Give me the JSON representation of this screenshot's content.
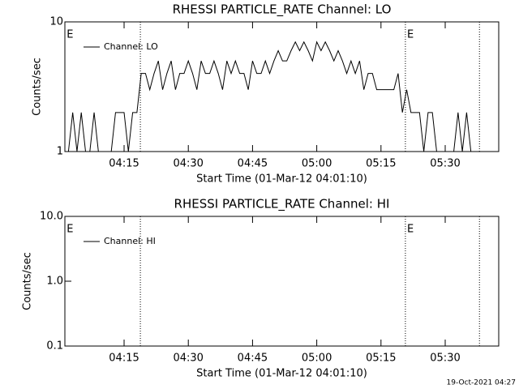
{
  "chart_data": [
    {
      "type": "line",
      "title": "RHESSI PARTICLE_RATE Channel: LO",
      "xlabel": "Start Time (01-Mar-12 04:01:10)",
      "ylabel": "Counts/sec",
      "x": [
        2,
        3,
        4,
        5,
        6,
        7,
        8,
        9,
        10,
        11,
        12,
        13,
        14,
        15,
        16,
        17,
        18,
        19,
        20,
        21,
        22,
        23,
        24,
        25,
        26,
        27,
        28,
        29,
        30,
        31,
        32,
        33,
        34,
        35,
        36,
        37,
        38,
        39,
        40,
        41,
        42,
        43,
        44,
        45,
        46,
        47,
        48,
        49,
        50,
        51,
        52,
        53,
        54,
        55,
        56,
        57,
        58,
        59,
        60,
        61,
        62,
        63,
        64,
        65,
        66,
        67,
        68,
        69,
        70,
        71,
        72,
        73,
        74,
        75,
        76,
        77,
        78,
        79,
        80,
        81,
        82,
        83,
        84,
        85,
        86,
        87,
        88,
        89,
        90,
        91,
        92,
        93,
        94,
        95,
        96,
        97
      ],
      "series": [
        {
          "name": "Channel: LO",
          "color": "#000000",
          "values": [
            1,
            2,
            1,
            2,
            1,
            1,
            2,
            1,
            1,
            1,
            1,
            2,
            2,
            2,
            1,
            2,
            2,
            4,
            4,
            3,
            4,
            5,
            3,
            4,
            5,
            3,
            4,
            4,
            5,
            4,
            3,
            5,
            4,
            4,
            5,
            4,
            3,
            5,
            4,
            5,
            4,
            4,
            3,
            5,
            4,
            4,
            5,
            4,
            5,
            6,
            5,
            5,
            6,
            7,
            6,
            7,
            6,
            5,
            7,
            6,
            7,
            6,
            5,
            6,
            5,
            4,
            5,
            4,
            5,
            3,
            4,
            4,
            3,
            3,
            3,
            3,
            3,
            4,
            2,
            3,
            2,
            2,
            2,
            1,
            2,
            2,
            1,
            1,
            1,
            1,
            1,
            2,
            1,
            2,
            1,
            1
          ]
        }
      ],
      "xlim": [
        1.17,
        102.5
      ],
      "xticks": [
        {
          "value": 15,
          "label": "04:15"
        },
        {
          "value": 30,
          "label": "04:30"
        },
        {
          "value": 45,
          "label": "04:45"
        },
        {
          "value": 60,
          "label": "05:00"
        },
        {
          "value": 75,
          "label": "05:15"
        },
        {
          "value": 90,
          "label": "05:30"
        }
      ],
      "ylim": [
        1,
        10
      ],
      "yticks": [
        1,
        10
      ],
      "ylog": true,
      "legend": "upper left",
      "markers": [
        18.8,
        80.7,
        98
      ],
      "annotations": [
        {
          "text": "E",
          "x": 1.6
        },
        {
          "text": "E",
          "x": 81.1
        }
      ]
    },
    {
      "type": "line",
      "title": "RHESSI PARTICLE_RATE Channel: HI",
      "xlabel": "Start Time (01-Mar-12 04:01:10)",
      "ylabel": "Counts/sec",
      "x": [],
      "series": [
        {
          "name": "Channel: HI",
          "color": "#000000",
          "values": []
        }
      ],
      "xlim": [
        1.17,
        102.5
      ],
      "xticks": [
        {
          "value": 15,
          "label": "04:15"
        },
        {
          "value": 30,
          "label": "04:30"
        },
        {
          "value": 45,
          "label": "04:45"
        },
        {
          "value": 60,
          "label": "05:00"
        },
        {
          "value": 75,
          "label": "05:15"
        },
        {
          "value": 90,
          "label": "05:30"
        }
      ],
      "ylim": [
        0.1,
        10
      ],
      "yticks": [
        0.1,
        {
          "value": 1,
          "label": "1.0"
        },
        {
          "value": 10,
          "label": "10.0"
        }
      ],
      "ylog": true,
      "legend": "upper left",
      "markers": [
        18.8,
        80.7,
        98
      ],
      "annotations": [
        {
          "text": "E",
          "x": 1.6
        },
        {
          "text": "E",
          "x": 81.1
        }
      ]
    }
  ],
  "footer": "19-Oct-2021 04:27"
}
